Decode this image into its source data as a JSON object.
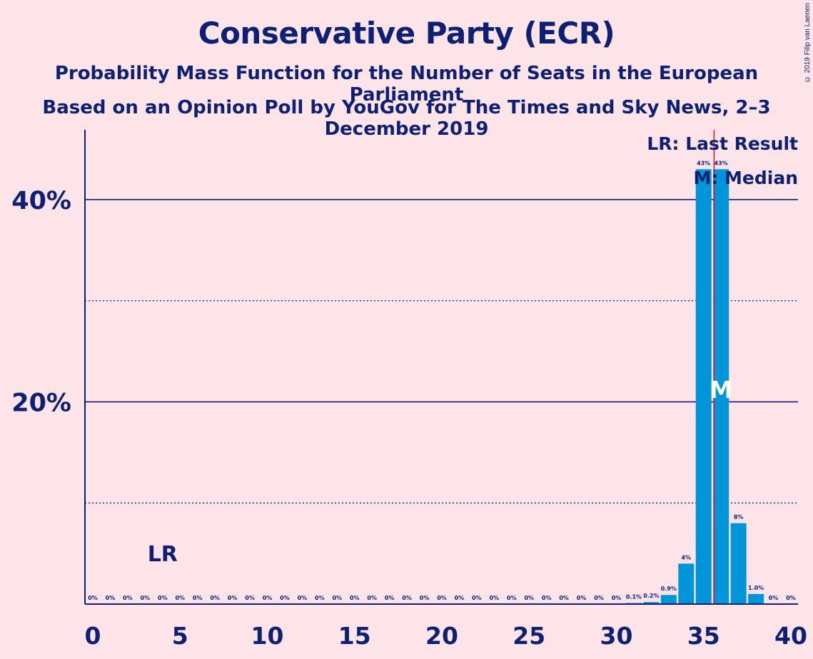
{
  "title": "Conservative Party (ECR)",
  "subtitle_1": "Probability Mass Function for the Number of Seats in the European Parliament",
  "subtitle_2": "Based on an Opinion Poll by YouGov for The Times and Sky News, 2–3 December 2019",
  "copyright": "© 2019 Filip van Laenen",
  "legend": {
    "last_result": "LR: Last Result",
    "median": "M: Median"
  },
  "markers": {
    "last_result_label": "LR",
    "median_label": "M"
  },
  "colors": {
    "background": "#fde4e8",
    "bar": "#0095d9",
    "text": "#0d2073",
    "median_line": "#e0103a"
  },
  "chart_data": {
    "type": "bar",
    "x": [
      0,
      1,
      2,
      3,
      4,
      5,
      6,
      7,
      8,
      9,
      10,
      11,
      12,
      13,
      14,
      15,
      16,
      17,
      18,
      19,
      20,
      21,
      22,
      23,
      24,
      25,
      26,
      27,
      28,
      29,
      30,
      31,
      32,
      33,
      34,
      35,
      36,
      37,
      38,
      39,
      40
    ],
    "values": [
      0,
      0,
      0,
      0,
      0,
      0,
      0,
      0,
      0,
      0,
      0,
      0,
      0,
      0,
      0,
      0,
      0,
      0,
      0,
      0,
      0,
      0,
      0,
      0,
      0,
      0,
      0,
      0,
      0,
      0,
      0,
      0.1,
      0.2,
      0.9,
      4,
      43,
      43,
      8,
      1.0,
      0,
      0
    ],
    "data_labels": [
      "0%",
      "0%",
      "0%",
      "0%",
      "0%",
      "0%",
      "0%",
      "0%",
      "0%",
      "0%",
      "0%",
      "0%",
      "0%",
      "0%",
      "0%",
      "0%",
      "0%",
      "0%",
      "0%",
      "0%",
      "0%",
      "0%",
      "0%",
      "0%",
      "0%",
      "0%",
      "0%",
      "0%",
      "0%",
      "0%",
      "0%",
      "0.1%",
      "0.2%",
      "0.9%",
      "4%",
      "43%",
      "43%",
      "8%",
      "1.0%",
      "0%",
      "0%"
    ],
    "xticks": [
      0,
      5,
      10,
      15,
      20,
      25,
      30,
      35,
      40
    ],
    "xtick_labels": [
      "0",
      "5",
      "10",
      "15",
      "20",
      "25",
      "30",
      "35",
      "40"
    ],
    "yticks": [
      20,
      40
    ],
    "ytick_labels": [
      "20%",
      "40%"
    ],
    "y_dotted_gridlines": [
      10,
      30
    ],
    "xlim": [
      0,
      40
    ],
    "ylim": [
      0,
      47
    ],
    "last_result": 4,
    "median": 36,
    "median_line_x": 35.6,
    "legend_position": "top-right"
  }
}
